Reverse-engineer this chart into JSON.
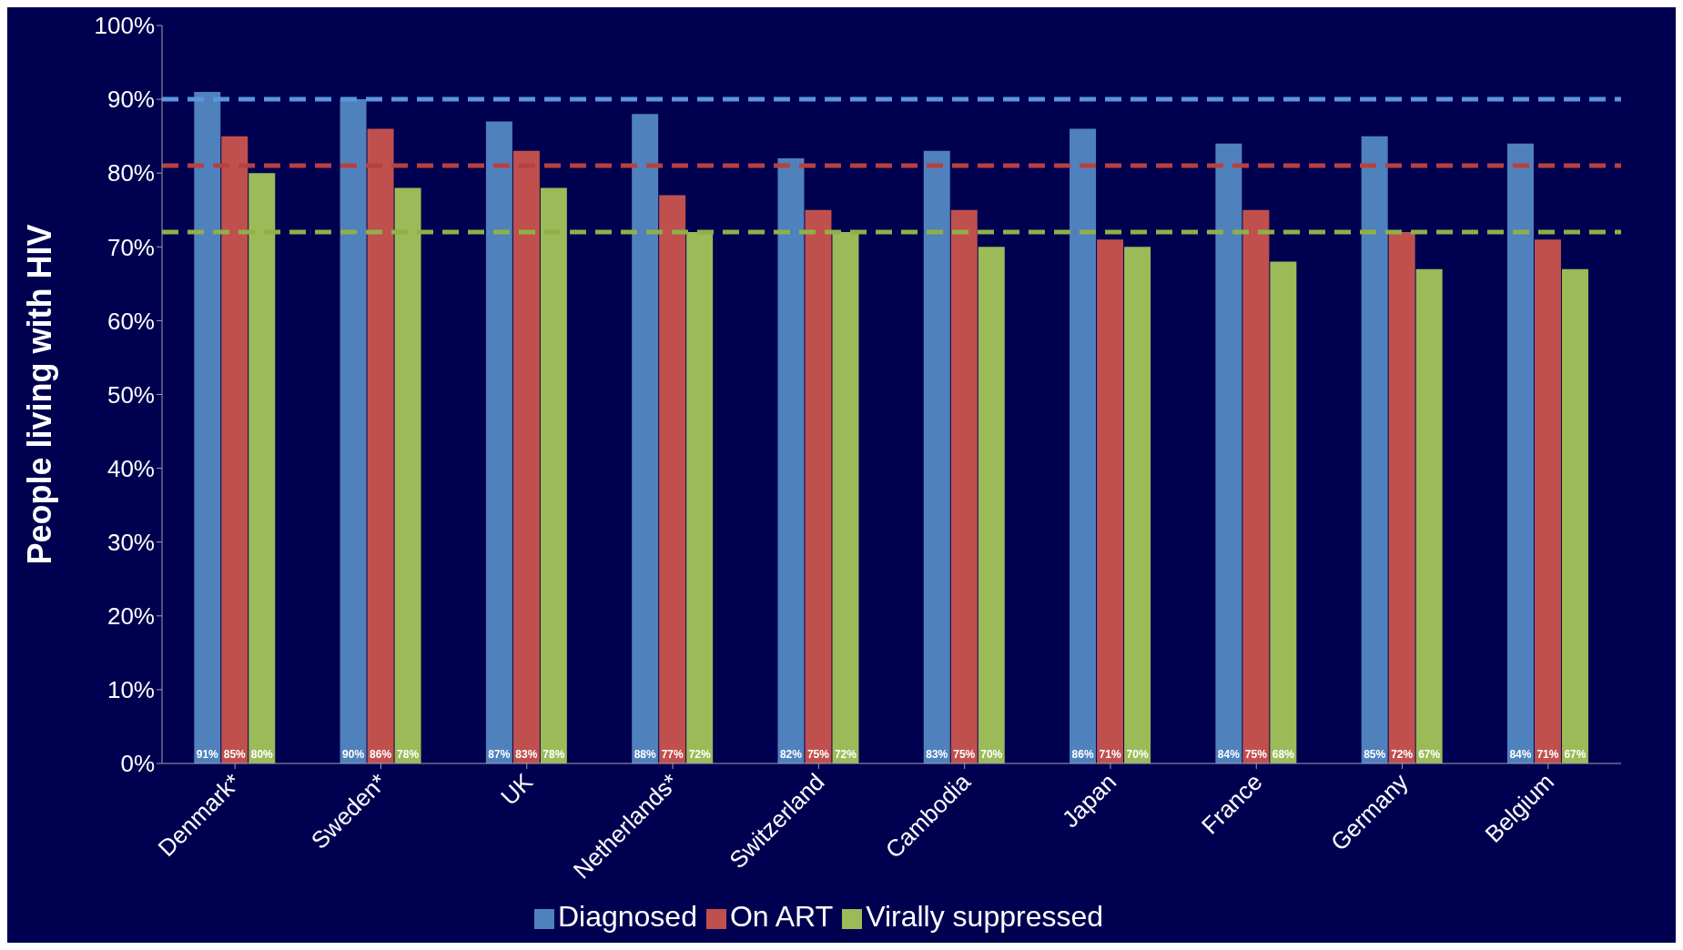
{
  "chart_data": {
    "type": "bar",
    "ylabel": "People living with HIV",
    "categories": [
      "Denmark*",
      "Sweden*",
      "UK",
      "Netherlands*",
      "Switzerland",
      "Cambodia",
      "Japan",
      "France",
      "Germany",
      "Belgium"
    ],
    "series": [
      {
        "name": "Diagnosed",
        "color": "#4f81bd",
        "values": [
          91,
          90,
          87,
          88,
          82,
          83,
          86,
          84,
          85,
          84
        ],
        "value_labels": [
          "91%",
          "90%",
          "87%",
          "88%",
          "82%",
          "83%",
          "86%",
          "84%",
          "85%",
          "84%"
        ]
      },
      {
        "name": "On ART",
        "color": "#c0504d",
        "values": [
          85,
          86,
          83,
          77,
          75,
          75,
          71,
          75,
          72,
          71
        ],
        "value_labels": [
          "85%",
          "86%",
          "83%",
          "77%",
          "75%",
          "75%",
          "71%",
          "75%",
          "72%",
          "71%"
        ]
      },
      {
        "name": "Virally suppressed",
        "color": "#9bbb59",
        "values": [
          80,
          78,
          78,
          72,
          72,
          70,
          70,
          68,
          67,
          67
        ],
        "value_labels": [
          "80%",
          "78%",
          "78%",
          "72%",
          "72%",
          "70%",
          "70%",
          "68%",
          "67%",
          "67%"
        ]
      }
    ],
    "ylim": [
      0,
      100
    ],
    "yticks": [
      {
        "value": 0,
        "label": "0%"
      },
      {
        "value": 10,
        "label": "10%"
      },
      {
        "value": 20,
        "label": "20%"
      },
      {
        "value": 30,
        "label": "30%"
      },
      {
        "value": 40,
        "label": "40%"
      },
      {
        "value": 50,
        "label": "50%"
      },
      {
        "value": 60,
        "label": "60%"
      },
      {
        "value": 70,
        "label": "70%"
      },
      {
        "value": 80,
        "label": "80%"
      },
      {
        "value": 90,
        "label": "90%"
      },
      {
        "value": 100,
        "label": "100%"
      }
    ],
    "ref_lines": [
      {
        "axis": "y",
        "value": 90,
        "color": "#5b95dc",
        "line_style": "dashed"
      },
      {
        "axis": "y",
        "value": 81,
        "color": "#b8413e",
        "line_style": "dashed"
      },
      {
        "axis": "y",
        "value": 72,
        "color": "#8fb048",
        "line_style": "dashed"
      }
    ],
    "grid": false,
    "legend": "bottom"
  }
}
